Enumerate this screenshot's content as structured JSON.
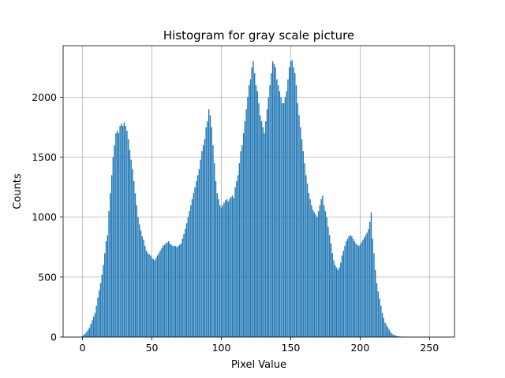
{
  "chart_data": {
    "type": "bar",
    "title": "Histogram for gray scale picture",
    "xlabel": "Pixel Value",
    "ylabel": "Counts",
    "xlim": [
      -14,
      268
    ],
    "ylim": [
      0,
      2430
    ],
    "xticks": [
      0,
      50,
      100,
      150,
      200,
      250
    ],
    "yticks": [
      0,
      500,
      1000,
      1500,
      2000
    ],
    "grid": true,
    "bar_color": "#1f77b4",
    "series": [
      {
        "values": [
          10,
          20,
          30,
          45,
          60,
          80,
          110,
          140,
          170,
          200,
          260,
          330,
          390,
          450,
          520,
          600,
          700,
          800,
          850,
          1050,
          1200,
          1350,
          1500,
          1600,
          1700,
          1720,
          1700,
          1760,
          1780,
          1760,
          1790,
          1760,
          1720,
          1650,
          1560,
          1480,
          1400,
          1300,
          1200,
          1100,
          1000,
          940,
          890,
          840,
          810,
          760,
          720,
          700,
          690,
          680,
          660,
          650,
          640,
          660,
          680,
          700,
          720,
          740,
          760,
          770,
          780,
          790,
          800,
          780,
          770,
          760,
          760,
          760,
          750,
          760,
          770,
          780,
          820,
          860,
          900,
          950,
          1000,
          1050,
          1100,
          1150,
          1200,
          1250,
          1300,
          1350,
          1400,
          1480,
          1550,
          1600,
          1650,
          1750,
          1800,
          1900,
          1850,
          1750,
          1600,
          1450,
          1300,
          1200,
          1150,
          1100,
          1080,
          1100,
          1120,
          1140,
          1150,
          1130,
          1150,
          1170,
          1180,
          1160,
          1250,
          1300,
          1350,
          1450,
          1550,
          1600,
          1700,
          1800,
          1900,
          2000,
          2100,
          2150,
          2250,
          2300,
          2200,
          2100,
          2050,
          1950,
          1850,
          1800,
          1750,
          1700,
          1800,
          1900,
          2000,
          2100,
          2200,
          2300,
          2280,
          2250,
          2150,
          2100,
          2050,
          2000,
          1950,
          1950,
          2000,
          2050,
          2150,
          2250,
          2300,
          2310,
          2250,
          2200,
          2100,
          1950,
          1850,
          1750,
          1650,
          1550,
          1450,
          1350,
          1280,
          1200,
          1150,
          1100,
          1060,
          1040,
          1020,
          1000,
          1050,
          1100,
          1150,
          1180,
          1100,
          1050,
          1000,
          920,
          850,
          780,
          700,
          640,
          600,
          580,
          560,
          580,
          620,
          680,
          720,
          760,
          800,
          820,
          840,
          850,
          840,
          820,
          800,
          780,
          770,
          760,
          770,
          790,
          810,
          830,
          850,
          870,
          900,
          960,
          1040,
          820,
          700,
          560,
          450,
          380,
          320,
          260,
          200,
          160,
          120,
          100,
          80,
          60,
          40,
          30,
          20,
          15,
          10,
          8,
          6,
          4,
          3,
          2,
          1,
          1,
          0,
          0,
          0,
          0,
          0,
          0,
          0,
          0,
          0,
          0,
          0,
          0,
          0,
          0
        ]
      }
    ]
  }
}
